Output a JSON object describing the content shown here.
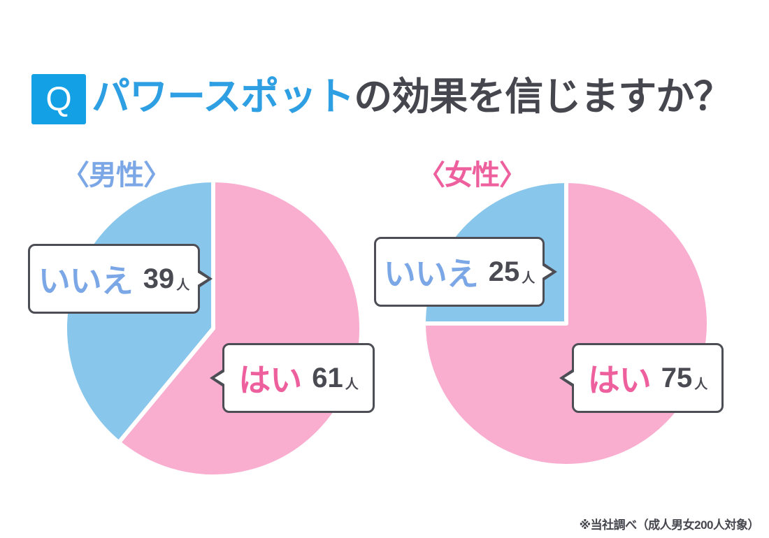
{
  "title": {
    "badge": "Q",
    "highlight": "パワースポット",
    "rest": "の効果を信じますか？"
  },
  "footnote": "※当社調べ（成人男女200人対象）",
  "colors": {
    "badge_blue": "#14a0e4",
    "title_blue": "#2e9fe2",
    "title_dark": "#46464e",
    "pie_pink": "#f9aed0",
    "pie_blue": "#88c6eb",
    "text_blue": "#7ba7e6",
    "text_pink": "#ee5f9d",
    "number": "#4a4a52",
    "border": "#4d4d55",
    "bg": "#ffffff"
  },
  "chart_data": [
    {
      "type": "pie",
      "group": "男性",
      "group_label": "〈男性〉",
      "unit": "人",
      "total": 100,
      "start": "top",
      "direction": "clockwise",
      "slices": [
        {
          "key": "yes",
          "label": "はい",
          "value": 61,
          "color": "#f9aed0"
        },
        {
          "key": "no",
          "label": "いいえ",
          "value": 39,
          "color": "#88c6eb"
        }
      ]
    },
    {
      "type": "pie",
      "group": "女性",
      "group_label": "〈女性〉",
      "unit": "人",
      "total": 100,
      "start": "top",
      "direction": "clockwise",
      "slices": [
        {
          "key": "yes",
          "label": "はい",
          "value": 75,
          "color": "#f9aed0"
        },
        {
          "key": "no",
          "label": "いいえ",
          "value": 25,
          "color": "#88c6eb"
        }
      ]
    }
  ]
}
